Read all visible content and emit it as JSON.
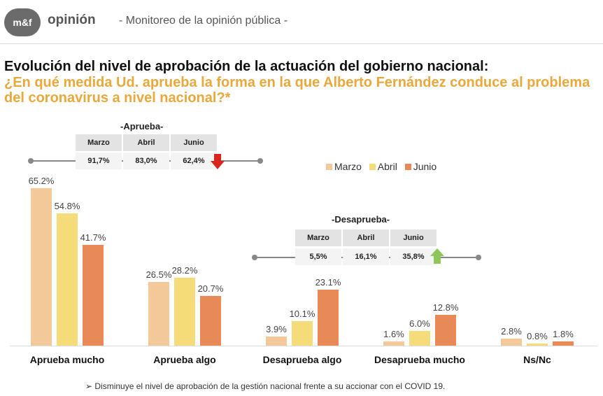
{
  "header": {
    "logo_text": "m&f",
    "logo_word": "opinión",
    "subtitle": "- Monitoreo de la opinión pública -"
  },
  "title": "Evolución del nivel de aprobación de la actuación del gobierno nacional:",
  "question": "¿En qué medida Ud. aprueba la forma en la que Alberto Fernández conduce al problema del coronavirus a nivel nacional?*",
  "summary_aprueba": {
    "title": "-Aprueba-",
    "headers": [
      "Marzo",
      "Abril",
      "Junio"
    ],
    "values": [
      "91,7%",
      "83,0%",
      "62,4%"
    ],
    "trend": "down-arrow-icon"
  },
  "summary_desaprueba": {
    "title": "-Desaprueba-",
    "headers": [
      "Marzo",
      "Abril",
      "Junio"
    ],
    "values": [
      "5,5%",
      "16,1%",
      "35,8%"
    ],
    "trend": "up-arrow-icon"
  },
  "colors": {
    "marzo": "#f3c99a",
    "abril": "#f6dc78",
    "junio": "#e88a58",
    "question": "#e8a83c",
    "down_arrow": "#d9261c",
    "up_arrow": "#8fc65a"
  },
  "chart_data": {
    "type": "bar",
    "categories": [
      "Aprueba mucho",
      "Aprueba algo",
      "Desaprueba algo",
      "Desaprueba mucho",
      "Ns/Nc"
    ],
    "series": [
      {
        "name": "Marzo",
        "values": [
          65.2,
          26.5,
          3.9,
          1.6,
          2.8
        ],
        "labels": [
          "65.2%",
          "26.5%",
          "3.9%",
          "1.6%",
          "2.8%"
        ]
      },
      {
        "name": "Abril",
        "values": [
          54.8,
          28.2,
          10.1,
          6.0,
          0.8
        ],
        "labels": [
          "54.8%",
          "28.2%",
          "10.1%",
          "6.0%",
          "0.8%"
        ]
      },
      {
        "name": "Junio",
        "values": [
          41.7,
          20.7,
          23.1,
          12.8,
          1.8
        ],
        "labels": [
          "41.7%",
          "20.7%",
          "23.1%",
          "12.8%",
          "1.8%"
        ]
      }
    ],
    "legend": [
      "Marzo",
      "Abril",
      "Junio"
    ],
    "legend_position": "top-right",
    "ylim": [
      0,
      70
    ],
    "grid": false
  },
  "footnote": "➢ Disminuye el nivel de aprobación de la gestión nacional frente a su accionar con el COVID 19."
}
